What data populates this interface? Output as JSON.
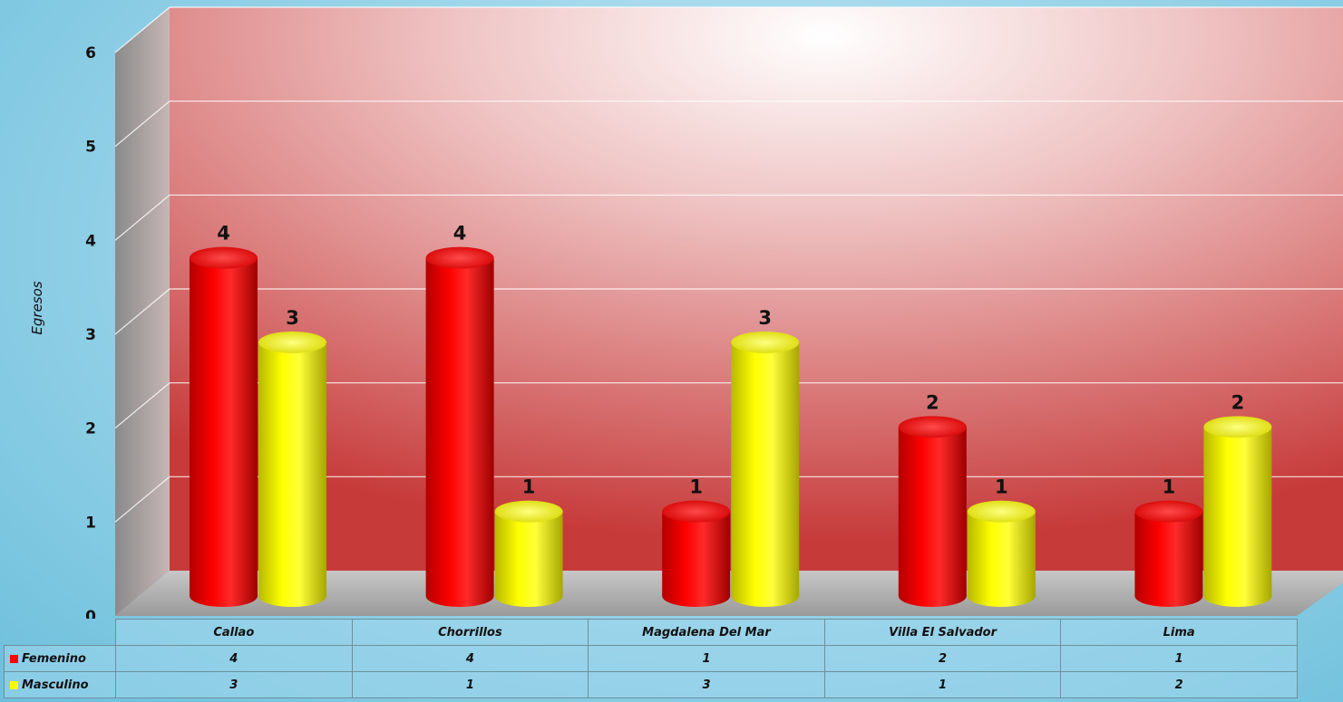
{
  "chart_data": {
    "type": "bar",
    "title": "",
    "xlabel": "",
    "ylabel": "Egresos",
    "ylim": [
      0,
      6
    ],
    "yticks": [
      0,
      1,
      2,
      3,
      4,
      5,
      6
    ],
    "grid": true,
    "categories": [
      "Callao",
      "Chorrillos",
      "Magdalena Del Mar",
      "Villa El Salvador",
      "Lima"
    ],
    "series": [
      {
        "name": "Femenino",
        "values": [
          4,
          4,
          1,
          2,
          1
        ],
        "color": "#ff0000"
      },
      {
        "name": "Masculino",
        "values": [
          3,
          1,
          3,
          1,
          2
        ],
        "color": "#ffff00"
      }
    ],
    "data_table": true
  }
}
